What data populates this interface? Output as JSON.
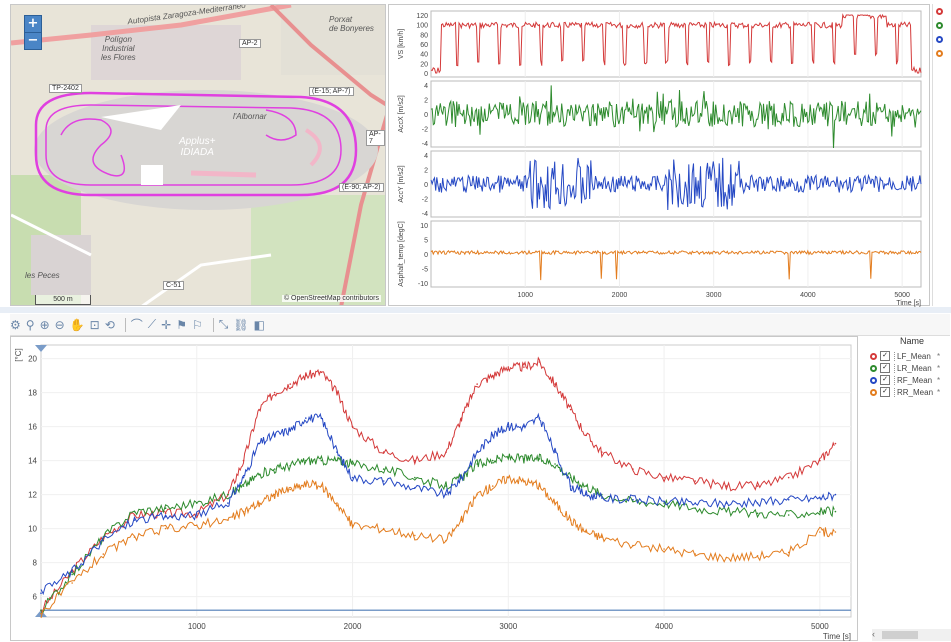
{
  "map": {
    "zoom_in": "+",
    "zoom_out": "−",
    "scale_label": "500 m",
    "attribution": "© OpenStreetMap contributors",
    "labels": {
      "poligon": "Polígon\nIndustrial\nles Flores",
      "applus": "Applus+\nIDIADA",
      "albornar": "l'Albornar",
      "peces": "les Peces",
      "autopista": "Autopista Zaragoza-Mediterráneo",
      "bonyeres": "Porxat\nde Bonyeres"
    },
    "roads": [
      "TP-2402",
      "AP-2",
      "AP-7",
      "(E-15; AP-7)",
      "(E-90; AP-2)",
      "C-51"
    ]
  },
  "tracks": {
    "x_ticks": [
      "1000",
      "2000",
      "3000",
      "4000",
      "5000"
    ],
    "x_label": "Time [s]",
    "panels": [
      {
        "ylabel": "VS [km/h]",
        "color": "#d43a3a",
        "ticks": [
          "120",
          "100",
          "80",
          "60",
          "40",
          "20",
          "0"
        ]
      },
      {
        "ylabel": "AccX [m/s2]",
        "color": "#2e8b2e",
        "ticks": [
          "4",
          "2",
          "0",
          "-2",
          "-4"
        ]
      },
      {
        "ylabel": "AccY [m/s2]",
        "color": "#2649c4",
        "ticks": [
          "4",
          "2",
          "0",
          "-2",
          "-4"
        ]
      },
      {
        "ylabel": "Asphalt_temp [degC]",
        "color": "#e37d1f",
        "ticks": [
          "10",
          "5",
          "0",
          "-5",
          "-10"
        ]
      }
    ]
  },
  "legend_top_colors": [
    "#d43a3a",
    "#2e8b2e",
    "#2649c4",
    "#e37d1f"
  ],
  "toolbar": {
    "icons": [
      "gear-icon",
      "zoom-icon",
      "zoom-in-icon",
      "zoom-out-icon",
      "pan-icon",
      "zoom-box-icon",
      "zoom-reset-icon",
      "cursor-icon",
      "line-icon",
      "crosshair-icon",
      "marker-a-icon",
      "marker-b-icon",
      "measure-icon",
      "link-icon",
      "lock-icon"
    ]
  },
  "main_chart": {
    "y_label": "[°C]",
    "y_ticks": [
      "20",
      "18",
      "16",
      "14",
      "12",
      "10",
      "8",
      "6"
    ],
    "x_ticks": [
      "1000",
      "2000",
      "3000",
      "4000",
      "5000"
    ],
    "x_label": "Time [s]"
  },
  "side_legend": {
    "header": "Name",
    "items": [
      {
        "name": "LF_Mean",
        "color": "#d43a3a",
        "extra": "*"
      },
      {
        "name": "LR_Mean",
        "color": "#2e8b2e",
        "extra": "*"
      },
      {
        "name": "RF_Mean",
        "color": "#2649c4",
        "extra": "*"
      },
      {
        "name": "RR_Mean",
        "color": "#e37d1f",
        "extra": "*"
      }
    ]
  },
  "chart_data": {
    "type": "line",
    "xlabel": "Time [s]",
    "ylabel": "[°C]",
    "xlim": [
      0,
      5200
    ],
    "ylim": [
      4.8,
      20.8
    ],
    "x": [
      0,
      200,
      400,
      600,
      800,
      1000,
      1200,
      1300,
      1400,
      1500,
      1600,
      1700,
      1800,
      1900,
      2000,
      2200,
      2400,
      2600,
      2700,
      2800,
      2900,
      3000,
      3100,
      3200,
      3300,
      3400,
      3500,
      3600,
      3800,
      4000,
      4200,
      4400,
      4600,
      4800,
      5000,
      5100
    ],
    "series": [
      {
        "name": "LF_Mean",
        "color": "#d43a3a",
        "values": [
          5.2,
          7.5,
          9.5,
          10.8,
          10.9,
          10.9,
          12.0,
          14.0,
          17.0,
          18.0,
          18.5,
          19.0,
          19.2,
          18.0,
          16.0,
          14.5,
          14.0,
          14.5,
          16.5,
          18.5,
          19.0,
          19.5,
          19.5,
          19.8,
          18.5,
          17.0,
          15.5,
          14.5,
          13.5,
          13.0,
          12.8,
          12.5,
          12.5,
          13.0,
          14.0,
          15.0
        ]
      },
      {
        "name": "LR_Mean",
        "color": "#2e8b2e",
        "values": [
          5.2,
          7.3,
          9.5,
          11.0,
          11.2,
          11.5,
          12.0,
          12.5,
          13.2,
          13.5,
          13.7,
          14.0,
          14.0,
          14.0,
          13.8,
          13.5,
          13.0,
          12.5,
          13.0,
          13.8,
          14.0,
          14.2,
          14.1,
          14.1,
          13.8,
          13.0,
          12.5,
          12.0,
          11.6,
          11.5,
          11.2,
          11.0,
          10.9,
          10.8,
          11.0,
          11.0
        ]
      },
      {
        "name": "RF_Mean",
        "color": "#2649c4",
        "values": [
          6.2,
          7.5,
          9.3,
          10.5,
          10.7,
          10.8,
          11.5,
          13.0,
          15.0,
          15.5,
          15.8,
          16.5,
          16.5,
          14.5,
          13.0,
          12.8,
          12.4,
          12.0,
          13.0,
          14.5,
          15.5,
          16.0,
          16.0,
          16.5,
          14.5,
          12.5,
          12.0,
          11.8,
          11.7,
          11.6,
          11.5,
          11.5,
          11.5,
          11.7,
          11.8,
          12.0
        ]
      },
      {
        "name": "RR_Mean",
        "color": "#e37d1f",
        "values": [
          5.0,
          6.8,
          8.5,
          9.5,
          10.0,
          10.2,
          10.5,
          11.0,
          11.5,
          12.0,
          12.3,
          12.6,
          12.5,
          11.5,
          10.2,
          10.0,
          9.6,
          9.3,
          10.5,
          12.0,
          12.5,
          13.0,
          12.8,
          12.5,
          11.5,
          10.5,
          9.8,
          9.5,
          9.0,
          8.8,
          8.5,
          8.3,
          8.4,
          8.6,
          9.8,
          9.8
        ]
      }
    ]
  }
}
